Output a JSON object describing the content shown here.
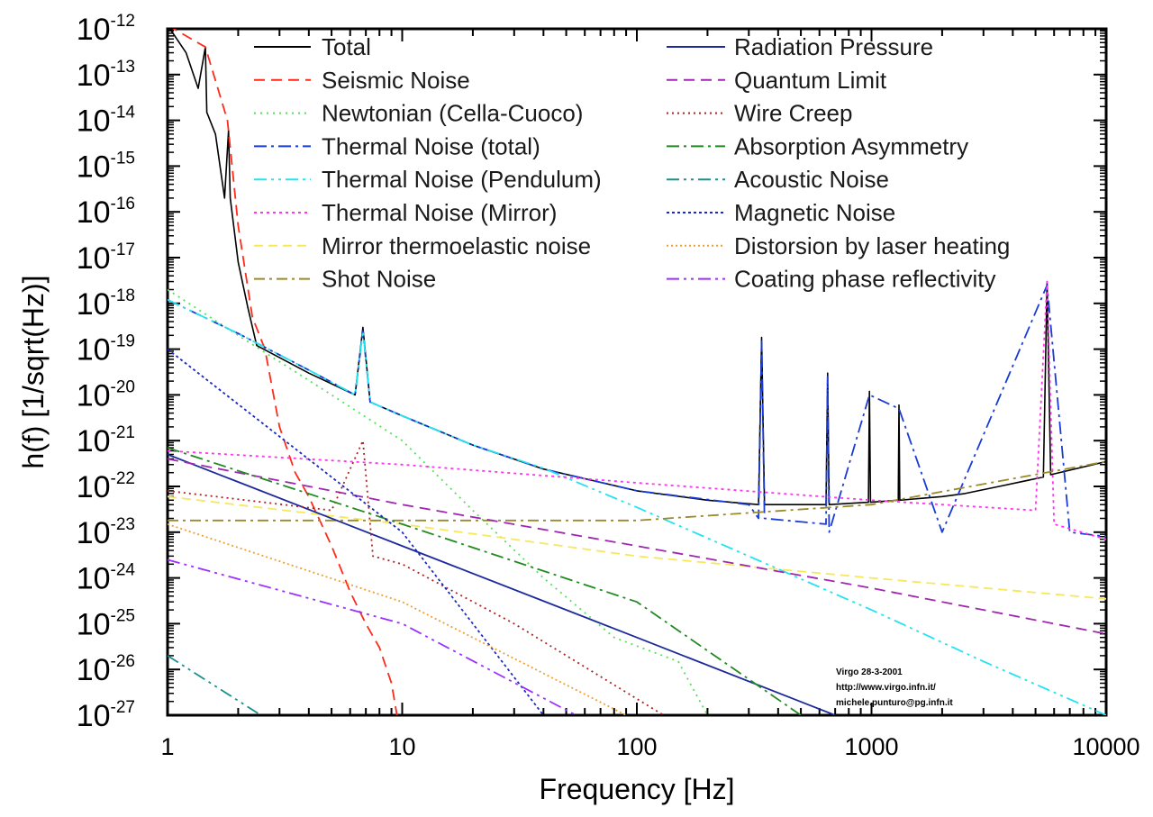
{
  "chart_data": {
    "type": "line",
    "scale": {
      "x": "log",
      "y": "log"
    },
    "xlim": [
      1,
      10000
    ],
    "ylim": [
      1e-27,
      1e-12
    ],
    "xlabel": "Frequency [Hz]",
    "ylabel": "h(f)  [1/sqrt(Hz)]",
    "x_ticks": [
      1,
      10,
      100,
      1000,
      10000
    ],
    "x_tick_labels": [
      "1",
      "10",
      "100",
      "1000",
      "10000"
    ],
    "y_ticks": [
      -12,
      -13,
      -14,
      -15,
      -16,
      -17,
      -18,
      -19,
      -20,
      -21,
      -22,
      -23,
      -24,
      -25,
      -26,
      -27
    ],
    "y_tick_base": "10",
    "y_tick_exponents": [
      "-12",
      "-13",
      "-14",
      "-15",
      "-16",
      "-17",
      "-18",
      "-19",
      "-20",
      "-21",
      "-22",
      "-23",
      "-24",
      "-25",
      "-26",
      "-27"
    ],
    "annotation": [
      "Virgo 28-3-2001",
      "http://www.virgo.infn.it/",
      "michele.punturo@pg.infn.it"
    ],
    "legend_position": "top (two columns inside plot)",
    "series": [
      {
        "name": "Total",
        "color": "#000000",
        "dash": "solid",
        "points": [
          [
            1,
            1.2e-12
          ],
          [
            1.2,
            3e-13
          ],
          [
            1.35,
            5e-14
          ],
          [
            1.45,
            4e-13
          ],
          [
            1.47,
            1.5e-14
          ],
          [
            1.6,
            5e-15
          ],
          [
            1.75,
            2e-16
          ],
          [
            1.82,
            6e-15
          ],
          [
            1.85,
            2e-16
          ],
          [
            2.0,
            8e-18
          ],
          [
            2.2,
            8e-19
          ],
          [
            2.4,
            1.2e-19
          ],
          [
            4,
            3e-20
          ],
          [
            6.3,
            1e-20
          ],
          [
            6.8,
            3e-19
          ],
          [
            7.3,
            7e-21
          ],
          [
            10,
            3.5e-21
          ],
          [
            20,
            8e-22
          ],
          [
            40,
            2.4e-22
          ],
          [
            100,
            8e-23
          ],
          [
            200,
            5e-23
          ],
          [
            330,
            4e-23
          ],
          [
            340,
            1.8e-19
          ],
          [
            350,
            4e-23
          ],
          [
            640,
            4e-23
          ],
          [
            650,
            3e-20
          ],
          [
            660,
            4e-23
          ],
          [
            970,
            4.5e-23
          ],
          [
            980,
            1.2e-20
          ],
          [
            990,
            4.5e-23
          ],
          [
            1300,
            5e-23
          ],
          [
            1310,
            6e-21
          ],
          [
            1320,
            5e-23
          ],
          [
            2000,
            6e-23
          ],
          [
            2500,
            7e-23
          ],
          [
            3500,
            1e-22
          ],
          [
            5400,
            1.6e-22
          ],
          [
            5600,
            3e-18
          ],
          [
            5800,
            1.8e-22
          ],
          [
            10000,
            3.5e-22
          ]
        ]
      },
      {
        "name": "Seismic Noise",
        "color": "#ff2a1a",
        "dash": "12 7",
        "points": [
          [
            1,
            1.2e-12
          ],
          [
            1.45,
            4e-13
          ],
          [
            1.8,
            1e-14
          ],
          [
            2.0,
            5e-17
          ],
          [
            2.3,
            5e-19
          ],
          [
            2.6,
            1e-19
          ],
          [
            3.0,
            2e-21
          ],
          [
            3.5,
            2e-22
          ],
          [
            4,
            6e-23
          ],
          [
            5,
            5e-24
          ],
          [
            6,
            5e-25
          ],
          [
            7,
            1e-25
          ],
          [
            8,
            3e-26
          ],
          [
            9,
            5e-27
          ],
          [
            9.5,
            1e-27
          ]
        ]
      },
      {
        "name": "Newtonian (Cella-Cuoco)",
        "color": "#55e055",
        "dash": "2 5",
        "points": [
          [
            1,
            2e-18
          ],
          [
            2,
            2e-19
          ],
          [
            5,
            1e-20
          ],
          [
            10,
            1e-21
          ],
          [
            20,
            3e-23
          ],
          [
            40,
            1e-24
          ],
          [
            80,
            5e-26
          ],
          [
            150,
            1.5e-26
          ],
          [
            200,
            1e-27
          ]
        ]
      },
      {
        "name": "Thermal Noise (total)",
        "color": "#1a3cd6",
        "dash": "14 5 3 5",
        "points": [
          [
            1,
            1.2e-18
          ],
          [
            2,
            2.2e-19
          ],
          [
            4,
            3.5e-20
          ],
          [
            6.3,
            1e-20
          ],
          [
            6.8,
            2.5e-19
          ],
          [
            7.3,
            7e-21
          ],
          [
            10,
            3.5e-21
          ],
          [
            20,
            8e-22
          ],
          [
            40,
            2.4e-22
          ],
          [
            100,
            8e-23
          ],
          [
            300,
            4e-23
          ],
          [
            330,
            2e-23
          ],
          [
            340,
            1.5e-19
          ],
          [
            350,
            2e-23
          ],
          [
            640,
            1.5e-23
          ],
          [
            650,
            2.5e-20
          ],
          [
            660,
            1e-23
          ],
          [
            980,
            1e-20
          ],
          [
            1310,
            5e-21
          ],
          [
            2000,
            1e-23
          ],
          [
            5600,
            2.5e-18
          ],
          [
            7000,
            1e-23
          ],
          [
            10000,
            8e-24
          ]
        ]
      },
      {
        "name": "Thermal Noise (Pendulum)",
        "color": "#22e3f0",
        "dash": "14 5 3 5 3 5",
        "points": [
          [
            1,
            1.2e-18
          ],
          [
            2,
            2.2e-19
          ],
          [
            4,
            3.5e-20
          ],
          [
            6.3,
            1e-20
          ],
          [
            6.8,
            2.5e-19
          ],
          [
            7.3,
            7e-21
          ],
          [
            10,
            3.5e-21
          ],
          [
            20,
            8e-22
          ],
          [
            40,
            2.5e-22
          ],
          [
            100,
            3.5e-23
          ],
          [
            300,
            3e-24
          ],
          [
            1000,
            2e-25
          ],
          [
            3000,
            1.5e-26
          ],
          [
            10000,
            1e-27
          ]
        ]
      },
      {
        "name": "Thermal Noise (Mirror)",
        "color": "#ff33ee",
        "dash": "3 4",
        "points": [
          [
            1,
            6e-22
          ],
          [
            10,
            3e-22
          ],
          [
            100,
            1.2e-22
          ],
          [
            1000,
            5e-23
          ],
          [
            5000,
            3e-23
          ],
          [
            5600,
            3e-18
          ],
          [
            6000,
            1.5e-23
          ],
          [
            10000,
            7e-24
          ]
        ]
      },
      {
        "name": "Mirror thermoelastic noise",
        "color": "#f7e85a",
        "dash": "10 6",
        "points": [
          [
            1,
            6e-23
          ],
          [
            10,
            1.5e-23
          ],
          [
            100,
            3e-24
          ],
          [
            1000,
            1e-24
          ],
          [
            10000,
            3.5e-25
          ]
        ]
      },
      {
        "name": "Shot Noise",
        "color": "#9a8a2a",
        "dash": "12 5 3 5",
        "points": [
          [
            1,
            1.8e-23
          ],
          [
            100,
            1.8e-23
          ],
          [
            1000,
            4e-23
          ],
          [
            10000,
            3.5e-22
          ]
        ]
      },
      {
        "name": "Radiation Pressure",
        "color": "#1c2a9c",
        "dash": "solid",
        "points": [
          [
            1,
            5e-22
          ],
          [
            10,
            5e-24
          ],
          [
            100,
            5e-26
          ],
          [
            700,
            1e-27
          ]
        ]
      },
      {
        "name": "Quantum Limit",
        "color": "#a028b0",
        "dash": "12 7",
        "points": [
          [
            1,
            4e-22
          ],
          [
            10,
            4e-23
          ],
          [
            100,
            5e-24
          ],
          [
            1000,
            6e-25
          ],
          [
            10000,
            6e-26
          ]
        ]
      },
      {
        "name": "Wire Creep",
        "color": "#b02020",
        "dash": "2 4",
        "points": [
          [
            1,
            8e-23
          ],
          [
            5,
            3e-23
          ],
          [
            6.8,
            1e-21
          ],
          [
            7.5,
            3e-24
          ],
          [
            10,
            2e-24
          ],
          [
            30,
            1e-25
          ],
          [
            130,
            1e-27
          ]
        ]
      },
      {
        "name": "Absorption Asymmetry",
        "color": "#228a22",
        "dash": "14 5 3 5",
        "points": [
          [
            1,
            7e-22
          ],
          [
            10,
            1.5e-23
          ],
          [
            100,
            3e-25
          ],
          [
            500,
            1e-27
          ]
        ]
      },
      {
        "name": "Acoustic Noise",
        "color": "#1a8f8f",
        "dash": "14 5 3 5 3 5",
        "points": [
          [
            1,
            2e-26
          ],
          [
            2.5,
            1e-27
          ]
        ]
      },
      {
        "name": "Magnetic Noise",
        "color": "#1a28c0",
        "dash": "3 3",
        "points": [
          [
            1,
            1e-19
          ],
          [
            10,
            1e-23
          ],
          [
            40,
            1e-27
          ]
        ]
      },
      {
        "name": "Distorsion by laser heating",
        "color": "#f0a030",
        "dash": "2 3",
        "points": [
          [
            1,
            1.5e-23
          ],
          [
            10,
            3e-25
          ],
          [
            90,
            1e-27
          ]
        ]
      },
      {
        "name": "Coating phase reflectivity",
        "color": "#9b30ff",
        "dash": "14 5 3 5 3 5",
        "points": [
          [
            1,
            2.5e-24
          ],
          [
            10,
            1e-25
          ],
          [
            55,
            1e-27
          ]
        ]
      }
    ]
  }
}
